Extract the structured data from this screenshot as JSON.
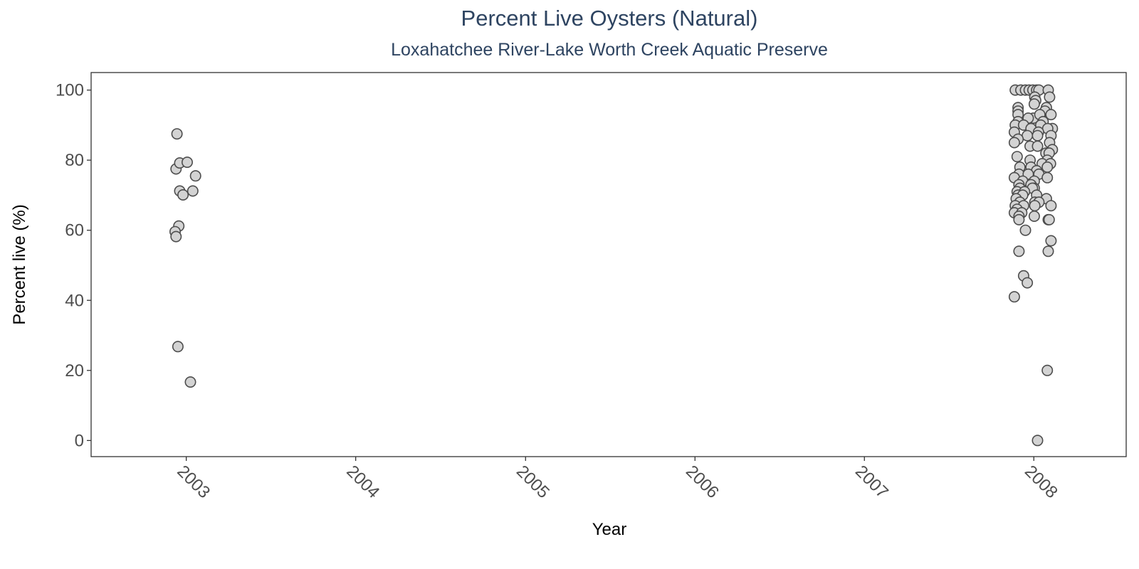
{
  "chart_data": {
    "type": "scatter",
    "title": "Percent Live Oysters (Natural)",
    "subtitle": "Loxahatchee River-Lake Worth Creek Aquatic Preserve",
    "xlabel": "Year",
    "ylabel": "Percent live (%)",
    "xlim": [
      "2002-06-10",
      "2008-07-18"
    ],
    "ylim": [
      -4.6,
      105
    ],
    "x_ticks": [
      "2003",
      "2004",
      "2005",
      "2006",
      "2007",
      "2008"
    ],
    "y_ticks": [
      "0",
      "20",
      "40",
      "60",
      "80",
      "100"
    ],
    "grid": false,
    "legend": "none",
    "point_fill": "#d3d3d3",
    "point_stroke": "#4d4d4d",
    "series": [
      {
        "points": [
          [
            "2002-12-12",
            87.5
          ],
          [
            "2002-12-10",
            77.5
          ],
          [
            "2002-12-18",
            79.2
          ],
          [
            "2003-01-03",
            79.4
          ],
          [
            "2003-01-21",
            75.5
          ],
          [
            "2002-12-18",
            71.2
          ],
          [
            "2002-12-25",
            70.1
          ],
          [
            "2003-01-15",
            71.2
          ],
          [
            "2002-12-16",
            61.2
          ],
          [
            "2002-12-08",
            59.6
          ],
          [
            "2002-12-10",
            58.2
          ],
          [
            "2002-12-14",
            26.8
          ],
          [
            "2003-01-10",
            16.7
          ],
          [
            "2007-11-22",
            100
          ],
          [
            "2007-12-04",
            100
          ],
          [
            "2007-12-14",
            100
          ],
          [
            "2007-12-22",
            100
          ],
          [
            "2007-12-30",
            100
          ],
          [
            "2008-01-07",
            100
          ],
          [
            "2008-01-12",
            100
          ],
          [
            "2008-02-01",
            100
          ],
          [
            "2008-01-03",
            98
          ],
          [
            "2008-02-04",
            98
          ],
          [
            "2008-01-05",
            97
          ],
          [
            "2008-01-02",
            96
          ],
          [
            "2007-11-28",
            95
          ],
          [
            "2007-11-28",
            94
          ],
          [
            "2008-01-28",
            95
          ],
          [
            "2008-01-25",
            94
          ],
          [
            "2007-11-28",
            93
          ],
          [
            "2007-12-31",
            92
          ],
          [
            "2008-01-14",
            93
          ],
          [
            "2008-02-07",
            93
          ],
          [
            "2007-11-28",
            91
          ],
          [
            "2007-12-20",
            92
          ],
          [
            "2008-01-21",
            91
          ],
          [
            "2008-01-16",
            90
          ],
          [
            "2007-11-22",
            90
          ],
          [
            "2007-12-10",
            90
          ],
          [
            "2008-02-10",
            89
          ],
          [
            "2007-12-26",
            89
          ],
          [
            "2008-01-31",
            89
          ],
          [
            "2007-11-20",
            88
          ],
          [
            "2008-01-11",
            88
          ],
          [
            "2007-12-18",
            87
          ],
          [
            "2008-01-09",
            87
          ],
          [
            "2008-02-07",
            87
          ],
          [
            "2007-11-28",
            86
          ],
          [
            "2008-02-04",
            85
          ],
          [
            "2007-11-20",
            85
          ],
          [
            "2007-12-24",
            84
          ],
          [
            "2008-01-09",
            84
          ],
          [
            "2008-02-10",
            83
          ],
          [
            "2008-01-27",
            82
          ],
          [
            "2008-02-03",
            82
          ],
          [
            "2007-11-26",
            81
          ],
          [
            "2007-12-24",
            80
          ],
          [
            "2008-01-30",
            80
          ],
          [
            "2008-01-19",
            79
          ],
          [
            "2008-02-06",
            79
          ],
          [
            "2007-12-02",
            78
          ],
          [
            "2007-12-26",
            78
          ],
          [
            "2008-01-30",
            78
          ],
          [
            "2008-01-07",
            77
          ],
          [
            "2007-11-30",
            76
          ],
          [
            "2007-12-20",
            76
          ],
          [
            "2008-01-12",
            76
          ],
          [
            "2007-11-20",
            75
          ],
          [
            "2008-01-30",
            75
          ],
          [
            "2007-12-08",
            74
          ],
          [
            "2008-01-02",
            74
          ],
          [
            "2007-11-30",
            73
          ],
          [
            "2007-12-26",
            73
          ],
          [
            "2007-12-02",
            72
          ],
          [
            "2008-01-02",
            72
          ],
          [
            "2007-12-29",
            72
          ],
          [
            "2007-11-26",
            71
          ],
          [
            "2007-12-12",
            71
          ],
          [
            "2007-11-28",
            70
          ],
          [
            "2007-12-08",
            70
          ],
          [
            "2008-01-07",
            70
          ],
          [
            "2007-11-24",
            69
          ],
          [
            "2008-01-28",
            69
          ],
          [
            "2007-12-02",
            68
          ],
          [
            "2008-01-03",
            68
          ],
          [
            "2008-01-12",
            68
          ],
          [
            "2007-11-22",
            67
          ],
          [
            "2007-12-10",
            67
          ],
          [
            "2008-01-03",
            67
          ],
          [
            "2008-02-07",
            67
          ],
          [
            "2007-11-26",
            66
          ],
          [
            "2007-11-20",
            65
          ],
          [
            "2007-12-06",
            65
          ],
          [
            "2007-11-30",
            64
          ],
          [
            "2008-01-02",
            64
          ],
          [
            "2007-11-30",
            63
          ],
          [
            "2008-02-01",
            63
          ],
          [
            "2008-02-03",
            63
          ],
          [
            "2007-12-14",
            60
          ],
          [
            "2008-02-07",
            57
          ],
          [
            "2007-11-30",
            54
          ],
          [
            "2008-02-01",
            54
          ],
          [
            "2007-12-10",
            47
          ],
          [
            "2007-12-18",
            45
          ],
          [
            "2007-11-20",
            41
          ],
          [
            "2008-01-30",
            20
          ],
          [
            "2008-01-09",
            0
          ]
        ]
      }
    ]
  }
}
